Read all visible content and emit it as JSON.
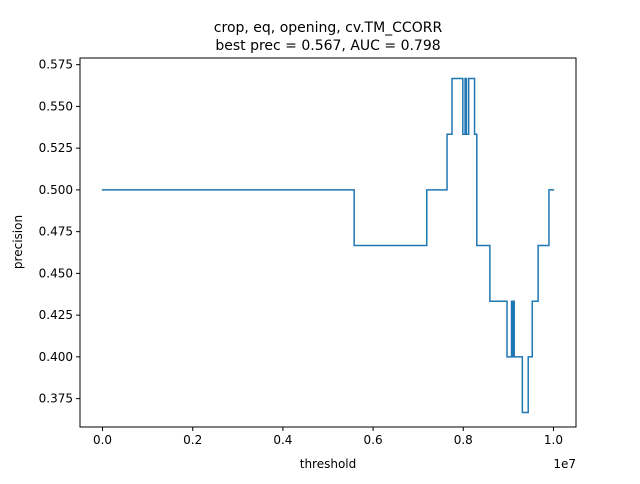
{
  "chart_data": {
    "type": "line",
    "title": "crop, eq, opening, cv.TM_CCORR",
    "subtitle": "best prec = 0.567, AUC = 0.798",
    "xlabel": "threshold",
    "ylabel": "precision",
    "x_offset_text": "1e7",
    "xlim": [
      -0.05,
      1.05
    ],
    "ylim": [
      0.358,
      0.579
    ],
    "x_ticks": [
      0.0,
      0.2,
      0.4,
      0.6,
      0.8,
      1.0
    ],
    "x_tick_labels": [
      "0.0",
      "0.2",
      "0.4",
      "0.6",
      "0.8",
      "1.0"
    ],
    "y_ticks": [
      0.375,
      0.4,
      0.425,
      0.45,
      0.475,
      0.5,
      0.525,
      0.55,
      0.575
    ],
    "y_tick_labels": [
      "0.375",
      "0.400",
      "0.425",
      "0.450",
      "0.475",
      "0.500",
      "0.525",
      "0.550",
      "0.575"
    ],
    "grid": false,
    "legend": "none",
    "line_style": "steps",
    "series": [
      {
        "color": "#1f77b4",
        "points": [
          [
            0.0,
            0.5
          ],
          [
            0.558,
            0.5
          ],
          [
            0.558,
            0.4667
          ],
          [
            0.719,
            0.4667
          ],
          [
            0.719,
            0.5
          ],
          [
            0.764,
            0.5
          ],
          [
            0.764,
            0.5333
          ],
          [
            0.775,
            0.5333
          ],
          [
            0.775,
            0.5667
          ],
          [
            0.799,
            0.5667
          ],
          [
            0.799,
            0.5333
          ],
          [
            0.804,
            0.5333
          ],
          [
            0.804,
            0.5667
          ],
          [
            0.807,
            0.5667
          ],
          [
            0.807,
            0.5333
          ],
          [
            0.812,
            0.5333
          ],
          [
            0.812,
            0.5667
          ],
          [
            0.825,
            0.5667
          ],
          [
            0.825,
            0.5333
          ],
          [
            0.83,
            0.5333
          ],
          [
            0.83,
            0.4667
          ],
          [
            0.859,
            0.4667
          ],
          [
            0.859,
            0.4333
          ],
          [
            0.897,
            0.4333
          ],
          [
            0.897,
            0.4
          ],
          [
            0.907,
            0.4
          ],
          [
            0.907,
            0.4333
          ],
          [
            0.909,
            0.4333
          ],
          [
            0.909,
            0.4
          ],
          [
            0.911,
            0.4
          ],
          [
            0.911,
            0.4333
          ],
          [
            0.913,
            0.4333
          ],
          [
            0.913,
            0.4
          ],
          [
            0.931,
            0.4
          ],
          [
            0.931,
            0.3667
          ],
          [
            0.944,
            0.3667
          ],
          [
            0.944,
            0.4
          ],
          [
            0.953,
            0.4
          ],
          [
            0.953,
            0.4333
          ],
          [
            0.966,
            0.4333
          ],
          [
            0.966,
            0.4667
          ],
          [
            0.99,
            0.4667
          ],
          [
            0.99,
            0.5
          ],
          [
            1.0,
            0.5
          ]
        ]
      }
    ]
  }
}
